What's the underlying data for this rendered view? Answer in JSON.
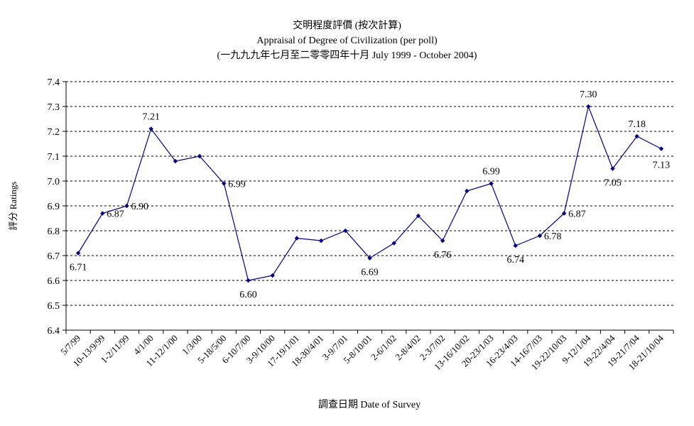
{
  "chart_data": {
    "type": "line",
    "title": "交明程度評價 (按次計算)",
    "subtitle": "Appraisal of Degree of Civilization (per poll)",
    "subtitle2": "(一九九九年七月至二零零四年十月 July 1999 - October 2004)",
    "xlabel": "調查日期 Date of Survey",
    "ylabel": "評分 Ratings",
    "ylim": [
      6.4,
      7.4
    ],
    "yticks": [
      "6.4",
      "6.5",
      "6.6",
      "6.7",
      "6.8",
      "6.9",
      "7.0",
      "7.1",
      "7.2",
      "7.3",
      "7.4"
    ],
    "grid": true,
    "legend": "none",
    "color": "#000080",
    "categories": [
      "5/7/99",
      "10-13/9/99",
      "1-2/11/99",
      "4/1/00",
      "11-12/1/00",
      "1/3/00",
      "5-18/5/00",
      "6-10/7/00",
      "3-9/10/00",
      "17-19/1/01",
      "18-30/4/01",
      "3-9/7/01",
      "5-8/10/01",
      "2-6/1/02",
      "2-8/4/02",
      "2-3/7/02",
      "13-16/10/02",
      "20-23/1/03",
      "16-23/4/03",
      "14-16/7/03",
      "19-22/10/03",
      "9-12/1/04",
      "19-22/4/04",
      "19-21/7/04",
      "18-21/10/04"
    ],
    "values": [
      6.71,
      6.87,
      6.9,
      7.21,
      7.08,
      7.1,
      6.99,
      6.6,
      6.62,
      6.77,
      6.76,
      6.8,
      6.69,
      6.75,
      6.86,
      6.76,
      6.96,
      6.99,
      6.74,
      6.78,
      6.87,
      7.3,
      7.05,
      7.18,
      7.13
    ],
    "data_labels": [
      "6.71",
      "6.87",
      "6.90",
      "7.21",
      "",
      "",
      "6.99",
      "6.60",
      "",
      "",
      "",
      "",
      "6.69",
      "",
      "",
      "6.76",
      "",
      "6.99",
      "6.74",
      "6.78",
      "6.87",
      "7.30",
      "7.05",
      "7.18",
      "7.13"
    ]
  }
}
